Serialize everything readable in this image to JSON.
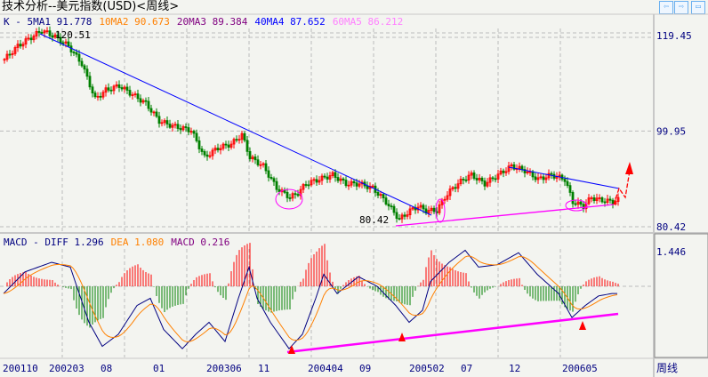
{
  "title": "技术分析--美元指数(USD)<周线>",
  "ma_legend": [
    {
      "label": "K - ",
      "color": "#000080"
    },
    {
      "label": "5MA1 91.778",
      "color": "#000080"
    },
    {
      "label": "10MA2 90.673",
      "color": "#ff8000"
    },
    {
      "label": "20MA3 89.384",
      "color": "#800080"
    },
    {
      "label": "40MA4 87.652",
      "color": "#0000ff"
    },
    {
      "label": "60MA5 86.212",
      "color": "#ff80ff"
    }
  ],
  "macd_legend": [
    {
      "label": "MACD - DIFF 1.296",
      "color": "#000080"
    },
    {
      "label": "DEA 1.080",
      "color": "#ff8000"
    },
    {
      "label": "MACD 0.216",
      "color": "#800080"
    }
  ],
  "buttons": {
    "prev": "⇦",
    "next": "⇨",
    "max": "▭"
  },
  "period_label": "周线",
  "chart_data": {
    "type": "candlestick",
    "price_axis": {
      "ticks": [
        "119.45",
        "99.95",
        "80.42"
      ],
      "range": [
        80.42,
        119.45
      ]
    },
    "annotations": {
      "high_label": "120.51",
      "low_label": "80.42"
    },
    "x_tick_labels": [
      "200110",
      "200203",
      "08",
      "01",
      "200306",
      "11",
      "200404",
      "09",
      "200502",
      "07",
      "12",
      "200605"
    ],
    "price_anchors": [
      [
        0,
        114.6
      ],
      [
        5,
        117.3
      ],
      [
        14,
        120.5
      ],
      [
        19,
        119.2
      ],
      [
        24,
        117.3
      ],
      [
        29,
        113.7
      ],
      [
        34,
        106.5
      ],
      [
        38,
        108.3
      ],
      [
        43,
        109.2
      ],
      [
        48,
        107.4
      ],
      [
        53,
        105.6
      ],
      [
        58,
        102.0
      ],
      [
        63,
        101.0
      ],
      [
        70,
        100.1
      ],
      [
        75,
        94.6
      ],
      [
        80,
        96.5
      ],
      [
        85,
        97.3
      ],
      [
        89,
        99.2
      ],
      [
        92,
        94.6
      ],
      [
        97,
        92.8
      ],
      [
        102,
        88.3
      ],
      [
        107,
        86.4
      ],
      [
        110,
        87.3
      ],
      [
        113,
        89.2
      ],
      [
        118,
        90.1
      ],
      [
        123,
        91.0
      ],
      [
        128,
        89.2
      ],
      [
        133,
        89.2
      ],
      [
        138,
        88.3
      ],
      [
        143,
        85.5
      ],
      [
        148,
        81.9
      ],
      [
        152,
        83.7
      ],
      [
        155,
        84.6
      ],
      [
        158,
        83.7
      ],
      [
        162,
        83.7
      ],
      [
        165,
        86.4
      ],
      [
        168,
        88.3
      ],
      [
        172,
        90.1
      ],
      [
        175,
        91.0
      ],
      [
        180,
        89.2
      ],
      [
        185,
        91.0
      ],
      [
        190,
        92.8
      ],
      [
        195,
        91.9
      ],
      [
        200,
        90.1
      ],
      [
        205,
        91.0
      ],
      [
        210,
        90.1
      ],
      [
        213,
        85.5
      ],
      [
        217,
        84.6
      ],
      [
        220,
        86.4
      ],
      [
        223,
        85.9
      ],
      [
        228,
        85.5
      ],
      [
        230,
        85.9
      ]
    ],
    "macd_anchors": [
      [
        0,
        -0.3
      ],
      [
        8,
        0.6
      ],
      [
        18,
        1.0
      ],
      [
        25,
        0.8
      ],
      [
        32,
        -1.5
      ],
      [
        37,
        -2.5
      ],
      [
        43,
        -2.0
      ],
      [
        50,
        -0.8
      ],
      [
        55,
        -0.5
      ],
      [
        60,
        -1.8
      ],
      [
        67,
        -2.6
      ],
      [
        72,
        -2.0
      ],
      [
        77,
        -1.5
      ],
      [
        83,
        -2.3
      ],
      [
        88,
        -0.5
      ],
      [
        92,
        0.8
      ],
      [
        95,
        -0.5
      ],
      [
        100,
        -1.5
      ],
      [
        107,
        -2.6
      ],
      [
        112,
        -2.0
      ],
      [
        117,
        -0.5
      ],
      [
        120,
        0.5
      ],
      [
        125,
        -0.3
      ],
      [
        133,
        0.4
      ],
      [
        140,
        0
      ],
      [
        147,
        -0.8
      ],
      [
        152,
        -1.5
      ],
      [
        157,
        -1.0
      ],
      [
        160,
        0.2
      ],
      [
        167,
        1.0
      ],
      [
        173,
        1.5
      ],
      [
        178,
        0.8
      ],
      [
        185,
        0.9
      ],
      [
        193,
        1.4
      ],
      [
        200,
        0.5
      ],
      [
        208,
        -0.3
      ],
      [
        213,
        -1.3
      ],
      [
        218,
        -0.8
      ],
      [
        223,
        -0.4
      ],
      [
        228,
        -0.3
      ]
    ],
    "macd_axis": {
      "ticks": [
        "1.446"
      ]
    }
  }
}
